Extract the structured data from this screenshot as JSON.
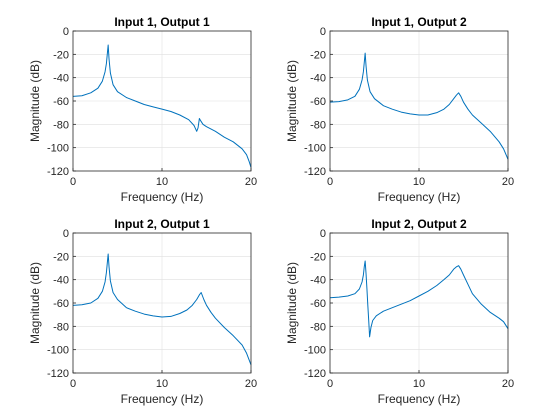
{
  "chart_data": [
    {
      "type": "line",
      "title": "Input 1, Output 1",
      "xlabel": "Frequency (Hz)",
      "ylabel": "Magnitude (dB)",
      "xlim": [
        0,
        20
      ],
      "ylim": [
        -120,
        0
      ],
      "xticks": [
        0,
        10,
        20
      ],
      "yticks": [
        0,
        -20,
        -40,
        -60,
        -80,
        -100,
        -120
      ],
      "grid": true,
      "series": [
        {
          "color": "#0072BD",
          "x": [
            0,
            1,
            2,
            2.8,
            3.3,
            3.6,
            3.75,
            3.85,
            3.95,
            4.05,
            4.2,
            4.5,
            5,
            6,
            7,
            8,
            9,
            10,
            11,
            12,
            13,
            13.6,
            13.9,
            14.05,
            14.2,
            14.35,
            14.6,
            15,
            16,
            17,
            18,
            19,
            19.5,
            19.8,
            20
          ],
          "y": [
            -56,
            -55.5,
            -53,
            -49,
            -43,
            -35,
            -28,
            -20,
            -12,
            -24,
            -36,
            -46,
            -52,
            -57,
            -60,
            -63,
            -65,
            -67,
            -69,
            -72,
            -76,
            -81,
            -86,
            -83,
            -75,
            -77,
            -80,
            -82,
            -86,
            -91,
            -95,
            -101,
            -106,
            -112,
            -117
          ]
        }
      ]
    },
    {
      "type": "line",
      "title": "Input 1, Output 2",
      "xlabel": "Frequency (Hz)",
      "ylabel": "Magnitude (dB)",
      "xlim": [
        0,
        20
      ],
      "ylim": [
        -120,
        0
      ],
      "xticks": [
        0,
        10,
        20
      ],
      "yticks": [
        0,
        -20,
        -40,
        -60,
        -80,
        -100,
        -120
      ],
      "grid": true,
      "series": [
        {
          "color": "#0072BD",
          "x": [
            0,
            1,
            2,
            2.8,
            3.3,
            3.6,
            3.75,
            3.85,
            3.95,
            4.05,
            4.2,
            4.5,
            5,
            6,
            7,
            8,
            9,
            10,
            11,
            12,
            12.8,
            13.4,
            13.9,
            14.2,
            14.45,
            14.7,
            15,
            15.5,
            16,
            17,
            18,
            19,
            19.5,
            20
          ],
          "y": [
            -61,
            -60.5,
            -59,
            -56,
            -50,
            -42,
            -35,
            -27,
            -19,
            -30,
            -42,
            -52,
            -58,
            -64,
            -67,
            -69.5,
            -71,
            -72,
            -72,
            -70,
            -67,
            -63,
            -58,
            -55,
            -53,
            -56,
            -61,
            -67,
            -72,
            -79,
            -86,
            -95,
            -101,
            -110
          ]
        }
      ]
    },
    {
      "type": "line",
      "title": "Input 2, Output 1",
      "xlabel": "Frequency (Hz)",
      "ylabel": "Magnitude (dB)",
      "xlim": [
        0,
        20
      ],
      "ylim": [
        -120,
        0
      ],
      "xticks": [
        0,
        10,
        20
      ],
      "yticks": [
        0,
        -20,
        -40,
        -60,
        -80,
        -100,
        -120
      ],
      "grid": true,
      "series": [
        {
          "color": "#0072BD",
          "x": [
            0,
            1,
            2,
            2.8,
            3.3,
            3.6,
            3.75,
            3.85,
            3.95,
            4.05,
            4.2,
            4.5,
            5,
            6,
            7,
            8,
            9,
            10,
            11,
            12,
            12.8,
            13.4,
            13.9,
            14.2,
            14.4,
            14.55,
            14.7,
            15,
            15.5,
            16,
            17,
            18,
            19,
            19.5,
            20
          ],
          "y": [
            -62,
            -61.5,
            -60,
            -56,
            -50,
            -42,
            -34,
            -26,
            -18,
            -29,
            -41,
            -51,
            -57,
            -64,
            -67,
            -69.5,
            -71,
            -72,
            -71.5,
            -69,
            -66,
            -62,
            -57,
            -53,
            -51,
            -54,
            -57,
            -62,
            -68,
            -73,
            -81,
            -88,
            -96,
            -103,
            -113
          ]
        }
      ]
    },
    {
      "type": "line",
      "title": "Input 2, Output 2",
      "xlabel": "Frequency (Hz)",
      "ylabel": "Magnitude (dB)",
      "xlim": [
        0,
        20
      ],
      "ylim": [
        -120,
        0
      ],
      "xticks": [
        0,
        10,
        20
      ],
      "yticks": [
        0,
        -20,
        -40,
        -60,
        -80,
        -100,
        -120
      ],
      "grid": true,
      "series": [
        {
          "color": "#0072BD",
          "x": [
            0,
            1,
            2,
            2.8,
            3.3,
            3.6,
            3.75,
            3.85,
            3.95,
            4.05,
            4.15,
            4.25,
            4.35,
            4.45,
            4.6,
            4.8,
            5.2,
            6,
            7,
            8,
            9,
            10,
            11,
            12,
            12.8,
            13.4,
            13.9,
            14.2,
            14.45,
            14.7,
            15,
            15.5,
            16,
            17,
            18,
            19,
            19.5,
            20
          ],
          "y": [
            -55.5,
            -55,
            -54,
            -52,
            -48,
            -42,
            -36,
            -29,
            -24,
            -35,
            -48,
            -62,
            -75,
            -89,
            -81,
            -75,
            -71,
            -67,
            -64,
            -61,
            -58,
            -54,
            -50,
            -45,
            -40,
            -36,
            -31,
            -29,
            -28,
            -31,
            -36,
            -44,
            -52,
            -61,
            -68,
            -73,
            -76,
            -82
          ]
        }
      ]
    }
  ]
}
